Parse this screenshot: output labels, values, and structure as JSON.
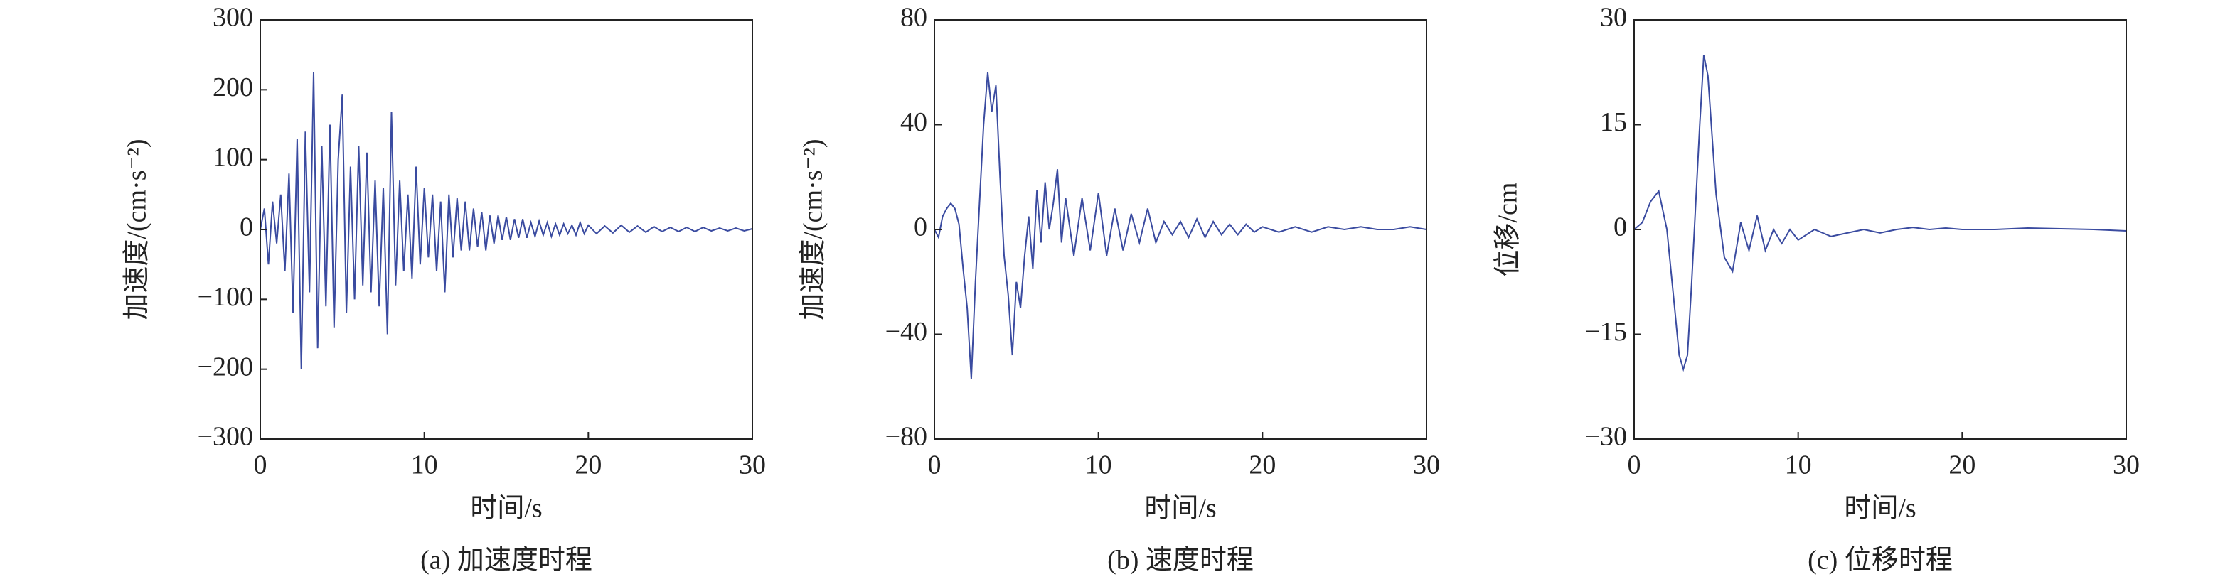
{
  "chart_data": [
    {
      "type": "line",
      "color": "#3a4ba0",
      "xlabel": "时间/s",
      "ylabel": "加速度/(cm·s⁻²)",
      "caption": "(a) 加速度时程",
      "xlim": [
        0,
        30
      ],
      "xticks": [
        0,
        10,
        20,
        30
      ],
      "ylim": [
        -300,
        300
      ],
      "yticks": [
        {
          "value": -300,
          "label": "−300"
        },
        {
          "value": -200,
          "label": "−200"
        },
        {
          "value": -100,
          "label": "−100"
        },
        0,
        100,
        200,
        300
      ],
      "x": [
        0,
        0.25,
        0.5,
        0.75,
        1,
        1.25,
        1.5,
        1.75,
        2,
        2.25,
        2.5,
        2.75,
        3,
        3.25,
        3.5,
        3.75,
        4,
        4.25,
        4.5,
        4.75,
        5,
        5.25,
        5.5,
        5.75,
        6,
        6.25,
        6.5,
        6.75,
        7,
        7.25,
        7.5,
        7.75,
        8,
        8.25,
        8.5,
        8.75,
        9,
        9.25,
        9.5,
        9.75,
        10,
        10.25,
        10.5,
        10.75,
        11,
        11.25,
        11.5,
        11.75,
        12,
        12.25,
        12.5,
        12.75,
        13,
        13.25,
        13.5,
        13.75,
        14,
        14.25,
        14.5,
        14.75,
        15,
        15.25,
        15.5,
        15.75,
        16,
        16.25,
        16.5,
        16.75,
        17,
        17.25,
        17.5,
        17.75,
        18,
        18.25,
        18.5,
        18.75,
        19,
        19.25,
        19.5,
        19.75,
        20,
        20.5,
        21,
        21.5,
        22,
        22.5,
        23,
        23.5,
        24,
        24.5,
        25,
        25.5,
        26,
        26.5,
        27,
        27.5,
        28,
        28.5,
        29,
        29.5,
        30
      ],
      "values": [
        0,
        30,
        -50,
        40,
        -20,
        50,
        -60,
        80,
        -120,
        130,
        -200,
        140,
        -90,
        225,
        -170,
        120,
        -110,
        150,
        -140,
        100,
        193,
        -120,
        90,
        -100,
        120,
        -80,
        110,
        -90,
        70,
        -110,
        60,
        -150,
        168,
        -80,
        70,
        -60,
        50,
        -70,
        90,
        -50,
        60,
        -40,
        50,
        -60,
        40,
        -90,
        50,
        -40,
        45,
        -30,
        40,
        -30,
        30,
        -25,
        25,
        -30,
        20,
        -20,
        20,
        -15,
        18,
        -15,
        15,
        -12,
        15,
        -12,
        10,
        -10,
        12,
        -8,
        10,
        -10,
        8,
        -8,
        8,
        -6,
        6,
        -8,
        10,
        -6,
        6,
        -6,
        5,
        -5,
        6,
        -4,
        5,
        -4,
        4,
        -3,
        3,
        -3,
        3,
        -3,
        3,
        -2,
        2,
        -2,
        2,
        -2,
        1
      ]
    },
    {
      "type": "line",
      "color": "#3a4ba0",
      "xlabel": "时间/s",
      "ylabel": "加速度/(cm·s⁻²)",
      "caption": "(b) 速度时程",
      "xlim": [
        0,
        30
      ],
      "xticks": [
        0,
        10,
        20,
        30
      ],
      "ylim": [
        -80,
        80
      ],
      "yticks": [
        {
          "value": -80,
          "label": "−80"
        },
        {
          "value": -40,
          "label": "−40"
        },
        0,
        40,
        80
      ],
      "x": [
        0,
        0.25,
        0.5,
        0.75,
        1,
        1.25,
        1.5,
        1.75,
        2,
        2.25,
        2.5,
        2.75,
        3,
        3.25,
        3.5,
        3.75,
        4,
        4.25,
        4.5,
        4.75,
        5,
        5.25,
        5.5,
        5.75,
        6,
        6.25,
        6.5,
        6.75,
        7,
        7.25,
        7.5,
        7.75,
        8,
        8.5,
        9,
        9.5,
        10,
        10.5,
        11,
        11.5,
        12,
        12.5,
        13,
        13.5,
        14,
        14.5,
        15,
        15.5,
        16,
        16.5,
        17,
        17.5,
        18,
        18.5,
        19,
        19.5,
        20,
        21,
        22,
        23,
        24,
        25,
        26,
        27,
        28,
        29,
        30
      ],
      "values": [
        0,
        -3,
        5,
        8,
        10,
        8,
        2,
        -15,
        -30,
        -57,
        -20,
        10,
        40,
        60,
        45,
        55,
        20,
        -10,
        -25,
        -48,
        -20,
        -30,
        -10,
        5,
        -15,
        15,
        -5,
        18,
        0,
        10,
        23,
        -5,
        12,
        -10,
        12,
        -8,
        14,
        -10,
        8,
        -8,
        6,
        -5,
        8,
        -5,
        3,
        -2,
        3,
        -3,
        4,
        -3,
        3,
        -2,
        2,
        -2,
        2,
        -1,
        1,
        -1,
        1,
        -1,
        1,
        0,
        1,
        0,
        0,
        1,
        0
      ]
    },
    {
      "type": "line",
      "color": "#3a4ba0",
      "xlabel": "时间/s",
      "ylabel": "位移/cm",
      "caption": "(c) 位移时程",
      "xlim": [
        0,
        30
      ],
      "xticks": [
        0,
        10,
        20,
        30
      ],
      "ylim": [
        -30,
        30
      ],
      "yticks": [
        {
          "value": -30,
          "label": "−30"
        },
        {
          "value": -15,
          "label": "−15"
        },
        0,
        15,
        30
      ],
      "x": [
        0,
        0.5,
        1,
        1.5,
        2,
        2.5,
        2.75,
        3,
        3.25,
        3.5,
        4,
        4.25,
        4.5,
        5,
        5.5,
        6,
        6.5,
        7,
        7.5,
        8,
        8.5,
        9,
        9.5,
        10,
        11,
        12,
        13,
        14,
        15,
        16,
        17,
        18,
        19,
        20,
        22,
        24,
        26,
        28,
        30
      ],
      "values": [
        0,
        1,
        4,
        5.5,
        0,
        -12,
        -18,
        -20,
        -18,
        -8,
        15,
        25,
        22,
        5,
        -4,
        -6,
        1,
        -3,
        2,
        -3,
        0,
        -2,
        0,
        -1.5,
        0,
        -1,
        -0.5,
        0,
        -0.5,
        0,
        0.3,
        0,
        0.2,
        0,
        0,
        0.2,
        0.1,
        0,
        -0.2
      ]
    }
  ]
}
